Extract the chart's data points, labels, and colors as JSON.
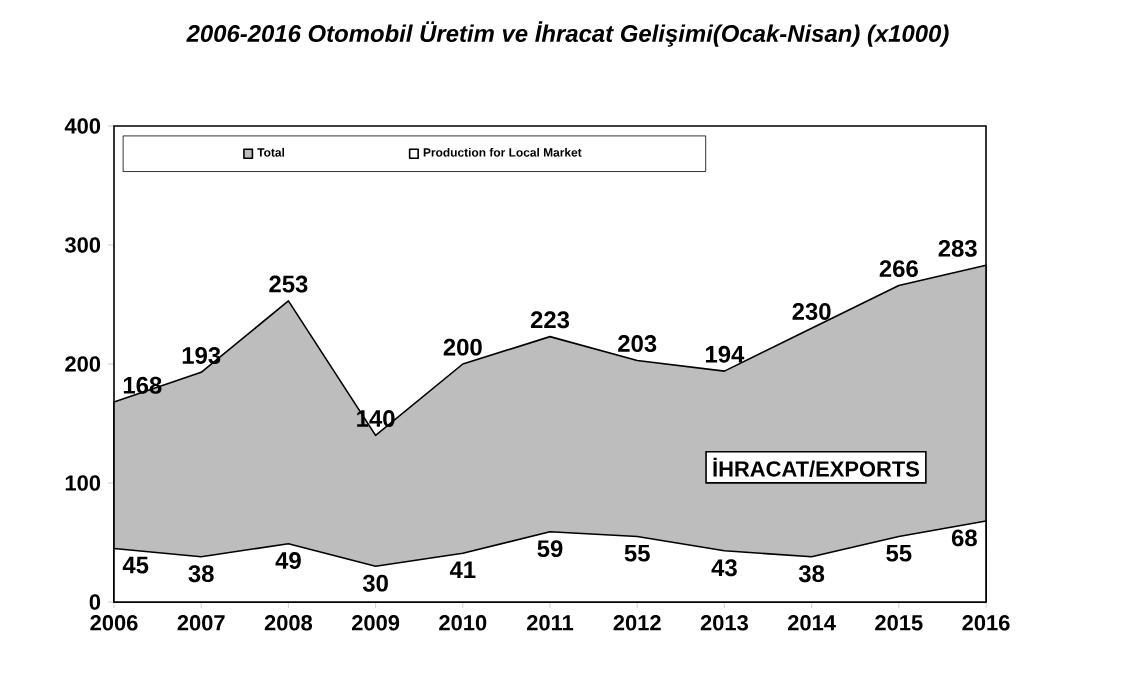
{
  "chart_data": {
    "type": "area",
    "title": "2006-2016 Otomobil Üretim ve İhracat Gelişimi(Ocak-Nisan) (x1000)",
    "x": [
      2006,
      2007,
      2008,
      2009,
      2010,
      2011,
      2012,
      2013,
      2014,
      2015,
      2016
    ],
    "series": [
      {
        "name": "Total",
        "color": "#bdbdbd",
        "values": [
          168,
          193,
          253,
          140,
          200,
          223,
          203,
          194,
          230,
          266,
          283
        ]
      },
      {
        "name": "Production for Local Market",
        "color": "#ffffff",
        "values": [
          45,
          38,
          49,
          30,
          41,
          59,
          55,
          43,
          38,
          55,
          68
        ]
      }
    ],
    "xlim": [
      2006,
      2016
    ],
    "xticks": [
      2006,
      2007,
      2008,
      2009,
      2010,
      2011,
      2012,
      2013,
      2014,
      2015,
      2016
    ],
    "ylim": [
      0,
      400
    ],
    "yticks": [
      0,
      100,
      200,
      300,
      400
    ],
    "data_labels": true,
    "legend": "top left",
    "annotations": [
      "İHRACAT/EXPORTS"
    ]
  }
}
